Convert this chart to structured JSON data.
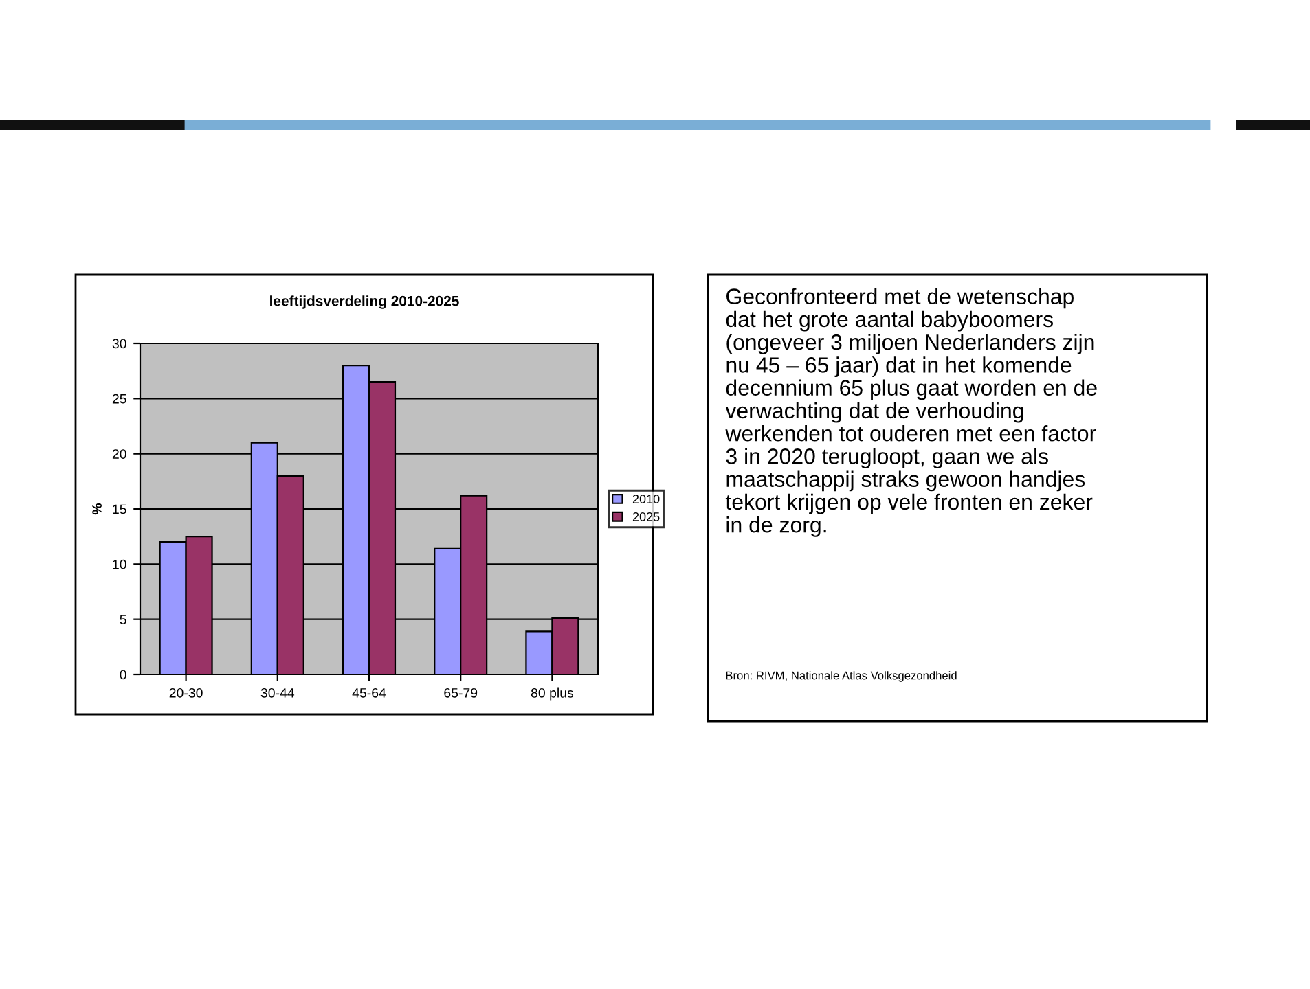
{
  "chart_data": [
    {
      "type": "bar",
      "title": "leeftijdsverdeling 2010-2025",
      "ylabel": "%",
      "categories": [
        "20-30",
        "30-44",
        "45-64",
        "65-79",
        "80 plus"
      ],
      "series": [
        {
          "name": "2010",
          "color": "#9999ff",
          "values": [
            12,
            21,
            28,
            11.4,
            3.9
          ]
        },
        {
          "name": "2025",
          "color": "#993366",
          "values": [
            12.5,
            18,
            26.5,
            16.2,
            5.1
          ]
        }
      ],
      "ylim": [
        0,
        30
      ],
      "yticks": [
        0,
        5,
        10,
        15,
        20,
        25,
        30
      ],
      "grid": "y",
      "legend": "right"
    },
    {
      "type": "other",
      "annotations": [
        "Geconfronteerd met de wetenschap\ndat het grote aantal babyboomers\n(ongeveer 3 miljoen Nederlanders zijn\nnu 45 – 65 jaar) dat in het komende\ndecennium 65 plus gaat worden en de\nverwachting dat de verhouding\nwerkenden tot ouderen met een factor\n3 in 2020 terugloopt, gaan we als\nmaatschappij straks gewoon handjes\ntekort krijgen op vele fronten en zeker\nin de zorg.",
        "Bron: RIVM, Nationale Atlas Volksgezondheid"
      ]
    }
  ]
}
